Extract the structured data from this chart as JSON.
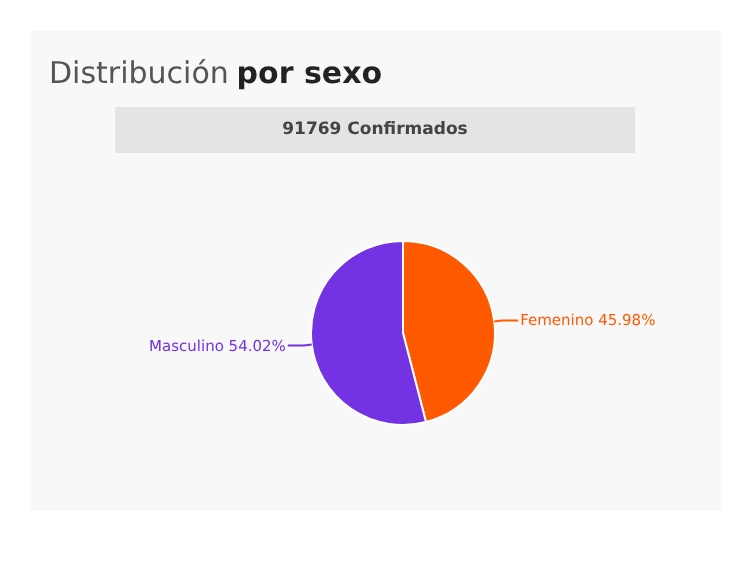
{
  "chart_data": {
    "type": "pie",
    "title": "Distribución por sexo",
    "subtitle": "91769 Confirmados",
    "categories": [
      "Femenino",
      "Masculino"
    ],
    "values": [
      45.98,
      54.02
    ],
    "value_labels": [
      "45.98%",
      "54.02%"
    ],
    "colors": [
      "#ff5a00",
      "#7433e3"
    ]
  }
}
